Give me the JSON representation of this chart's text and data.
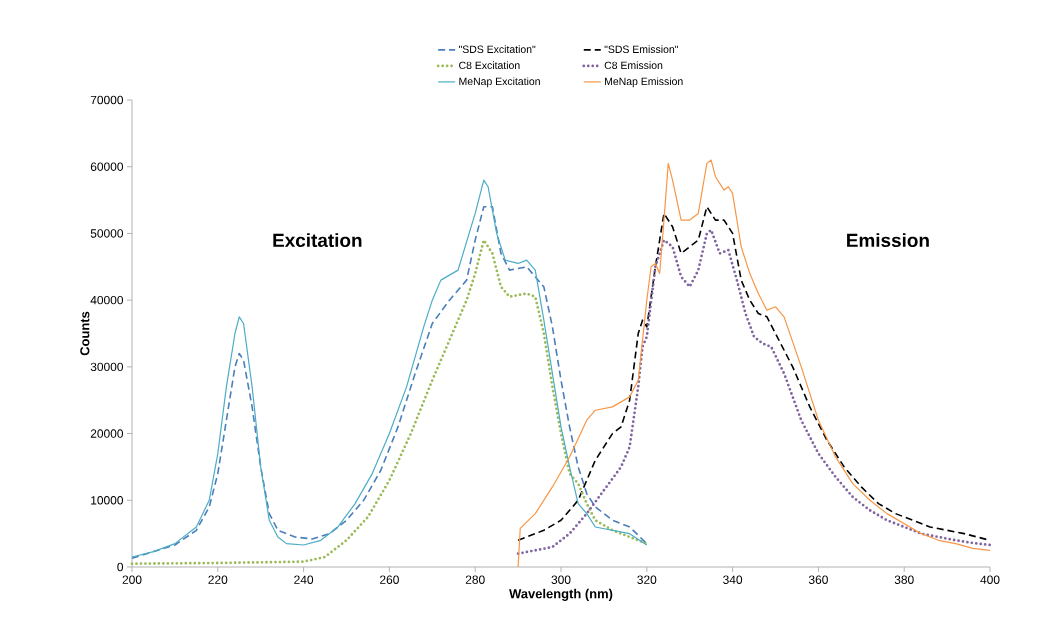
{
  "chart_data": {
    "type": "line",
    "xlabel": "Wavelength (nm)",
    "ylabel": "Counts",
    "xlim": [
      200,
      400
    ],
    "xticks": [
      200,
      220,
      240,
      260,
      280,
      300,
      320,
      340,
      360,
      380,
      400
    ],
    "ylim": [
      0,
      70000
    ],
    "yticks": [
      0,
      10000,
      20000,
      30000,
      40000,
      50000,
      60000,
      70000
    ],
    "grid": false,
    "legend": "top",
    "annotations": [
      "Excitation",
      "Emission"
    ],
    "series": [
      {
        "name": "\"SDS Excitation\"",
        "color": "#4a7ebb",
        "line_style": "dashed",
        "x": [
          200,
          210,
          215,
          218,
          220,
          222,
          224,
          225,
          226,
          228,
          230,
          232,
          234,
          238,
          242,
          246,
          250,
          254,
          258,
          262,
          266,
          270,
          274,
          278,
          280,
          282,
          284,
          286,
          288,
          292,
          296,
          298,
          300,
          302,
          304,
          306,
          308,
          312,
          316,
          320
        ],
        "values": [
          1300,
          3300,
          5500,
          9000,
          14000,
          22000,
          30000,
          32000,
          31000,
          24000,
          15000,
          8000,
          5500,
          4500,
          4200,
          5000,
          7000,
          10000,
          14500,
          21000,
          29000,
          36500,
          40000,
          43000,
          49000,
          54000,
          54000,
          47000,
          44500,
          45000,
          42000,
          36000,
          28000,
          21000,
          15000,
          11000,
          9000,
          7000,
          6000,
          3500
        ]
      },
      {
        "name": "\"SDS Emission\"",
        "color": "#000000",
        "line_style": "dashed",
        "x": [
          290,
          296,
          300,
          304,
          308,
          312,
          314,
          316,
          318,
          319,
          320,
          322,
          324,
          326,
          328,
          330,
          332,
          334,
          336,
          338,
          340,
          342,
          344,
          346,
          348,
          350,
          354,
          358,
          362,
          366,
          370,
          374,
          378,
          382,
          386,
          390,
          394,
          400
        ],
        "values": [
          4000,
          5500,
          7000,
          10000,
          16000,
          20000,
          21000,
          25000,
          35000,
          37000,
          36000,
          45000,
          53000,
          51000,
          47000,
          48000,
          49000,
          54000,
          52000,
          52000,
          50000,
          43000,
          40000,
          38000,
          37500,
          35000,
          30000,
          24000,
          19000,
          15000,
          12000,
          9500,
          8000,
          7000,
          6000,
          5500,
          5000,
          4000
        ]
      },
      {
        "name": "C8 Excitation",
        "color": "#9bbb59",
        "line_style": "dotted",
        "x": [
          200,
          220,
          230,
          240,
          245,
          250,
          255,
          260,
          265,
          270,
          274,
          278,
          280,
          282,
          284,
          286,
          288,
          292,
          294,
          296,
          298,
          300,
          302,
          304,
          306,
          308,
          312,
          316,
          320
        ],
        "values": [
          500,
          600,
          700,
          800,
          1500,
          4000,
          7500,
          13000,
          20000,
          28000,
          34000,
          40000,
          44000,
          49000,
          47000,
          42000,
          40500,
          41000,
          40500,
          35000,
          27000,
          20000,
          14000,
          12500,
          9500,
          7000,
          5500,
          4500,
          3500
        ]
      },
      {
        "name": "C8 Emission",
        "color": "#8064a2",
        "line_style": "dotted",
        "x": [
          290,
          294,
          298,
          302,
          306,
          310,
          314,
          316,
          318,
          319,
          320,
          322,
          324,
          326,
          328,
          330,
          332,
          334,
          335,
          337,
          339,
          341,
          343,
          345,
          347,
          349,
          352,
          356,
          360,
          364,
          368,
          372,
          376,
          380,
          384,
          388,
          392,
          396,
          400
        ],
        "values": [
          2000,
          2500,
          3000,
          5000,
          8000,
          11500,
          15000,
          18000,
          27000,
          33000,
          34500,
          45000,
          49000,
          48000,
          43500,
          42000,
          44500,
          50000,
          50500,
          47000,
          47500,
          43000,
          38000,
          34500,
          33500,
          33000,
          29000,
          22000,
          17000,
          13500,
          10500,
          8500,
          7000,
          6000,
          5000,
          4500,
          4000,
          3600,
          3300
        ]
      },
      {
        "name": "MeNap Excitation",
        "color": "#4bacc6",
        "line_style": "solid",
        "x": [
          200,
          205,
          210,
          215,
          218,
          220,
          222,
          224,
          225,
          226,
          228,
          230,
          232,
          234,
          236,
          240,
          244,
          248,
          252,
          256,
          260,
          264,
          268,
          270,
          272,
          276,
          280,
          282,
          283,
          285,
          287,
          290,
          292,
          294,
          296,
          298,
          300,
          302,
          304,
          306,
          308,
          312,
          316,
          320
        ],
        "values": [
          1500,
          2300,
          3500,
          6000,
          10000,
          17000,
          27000,
          35000,
          37500,
          36500,
          27000,
          15000,
          7000,
          4500,
          3500,
          3300,
          4000,
          6000,
          9500,
          14000,
          20000,
          27000,
          36000,
          40000,
          43000,
          44500,
          53000,
          58000,
          57000,
          50000,
          46000,
          45500,
          46000,
          44500,
          37000,
          29000,
          21000,
          15000,
          9500,
          8000,
          6000,
          5500,
          5000,
          3300
        ]
      },
      {
        "name": "MeNap Emission",
        "color": "#f79646",
        "line_style": "solid",
        "x": [
          290,
          290.5,
          294,
          298,
          302,
          306,
          308,
          312,
          316,
          318,
          320,
          321,
          322,
          323,
          324,
          325,
          326,
          328,
          330,
          332,
          334,
          335,
          336,
          338,
          339,
          340,
          342,
          344,
          346,
          348,
          350,
          352,
          356,
          360,
          364,
          368,
          372,
          376,
          380,
          384,
          388,
          392,
          396,
          400
        ],
        "values": [
          0,
          5800,
          8000,
          12000,
          16500,
          22000,
          23500,
          24000,
          25500,
          28000,
          40000,
          45000,
          45500,
          44000,
          52000,
          60500,
          58000,
          52000,
          52000,
          53000,
          60500,
          61000,
          58500,
          56500,
          57000,
          56000,
          48000,
          44000,
          41000,
          38500,
          39000,
          37500,
          30000,
          22000,
          16500,
          12500,
          10000,
          8000,
          6500,
          5000,
          4000,
          3500,
          2800,
          2500
        ]
      }
    ]
  }
}
